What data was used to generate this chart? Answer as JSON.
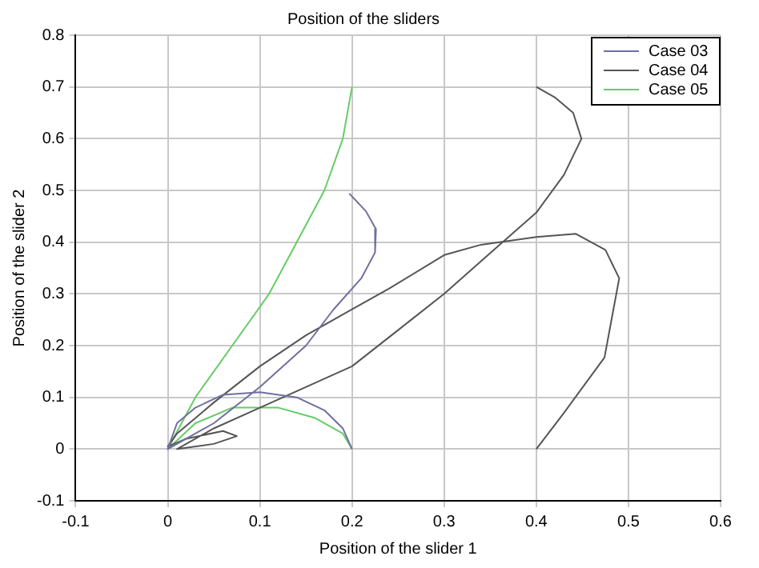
{
  "chart_data": {
    "type": "line",
    "title": "Position of the sliders",
    "xlabel": "Position of the slider 1",
    "ylabel": "Position of the slider 2",
    "xlim": [
      -0.1,
      0.6
    ],
    "xticks": [
      -0.1,
      0,
      0.1,
      0.2,
      0.3,
      0.4,
      0.5,
      0.6
    ],
    "ylim": [
      -0.1,
      0.8
    ],
    "yticks": [
      -0.1,
      0,
      0.1,
      0.2,
      0.3,
      0.4,
      0.5,
      0.6,
      0.7,
      0.8
    ],
    "grid": true,
    "legend": "top right",
    "line_style": "solid",
    "marker": "none",
    "series": [
      {
        "name": "Case 03",
        "color": "#6f6fa0",
        "x": [
          0.197,
          0.215,
          0.226,
          0.225,
          0.21,
          0.18,
          0.15,
          0.1,
          0.05,
          0.01,
          0,
          0.01,
          0.03,
          0.06,
          0.1,
          0.14,
          0.17,
          0.19,
          0.2
        ],
        "values": [
          0.494,
          0.46,
          0.425,
          0.38,
          0.33,
          0.27,
          0.2,
          0.12,
          0.05,
          0.01,
          0,
          0.05,
          0.08,
          0.105,
          0.11,
          0.1,
          0.075,
          0.04,
          0
        ]
      },
      {
        "name": "Case 04",
        "color": "#555555",
        "x": [
          0.4,
          0.43,
          0.474,
          0.49,
          0.475,
          0.443,
          0.4,
          0.34,
          0.3,
          0.24,
          0.2,
          0.15,
          0.1,
          0.05,
          0.01,
          0,
          0.02,
          0.06,
          0.075,
          0.05,
          0.01,
          0.05,
          0.1,
          0.2,
          0.25,
          0.3,
          0.354,
          0.4,
          0.43,
          0.449,
          0.44,
          0.42,
          0.4
        ],
        "values": [
          0,
          0.07,
          0.177,
          0.33,
          0.385,
          0.416,
          0.41,
          0.395,
          0.375,
          0.31,
          0.27,
          0.22,
          0.16,
          0.09,
          0.03,
          0.005,
          0.02,
          0.035,
          0.025,
          0.01,
          0,
          0.04,
          0.08,
          0.16,
          0.23,
          0.3,
          0.385,
          0.457,
          0.53,
          0.6,
          0.65,
          0.68,
          0.7
        ]
      },
      {
        "name": "Case 05",
        "color": "#66cc66",
        "x": [
          0.2,
          0.19,
          0.17,
          0.14,
          0.11,
          0.07,
          0.03,
          0,
          0.03,
          0.07,
          0.12,
          0.16,
          0.19,
          0.2
        ],
        "values": [
          0.7,
          0.6,
          0.5,
          0.4,
          0.3,
          0.2,
          0.1,
          0,
          0.05,
          0.08,
          0.08,
          0.06,
          0.03,
          0
        ]
      }
    ]
  }
}
